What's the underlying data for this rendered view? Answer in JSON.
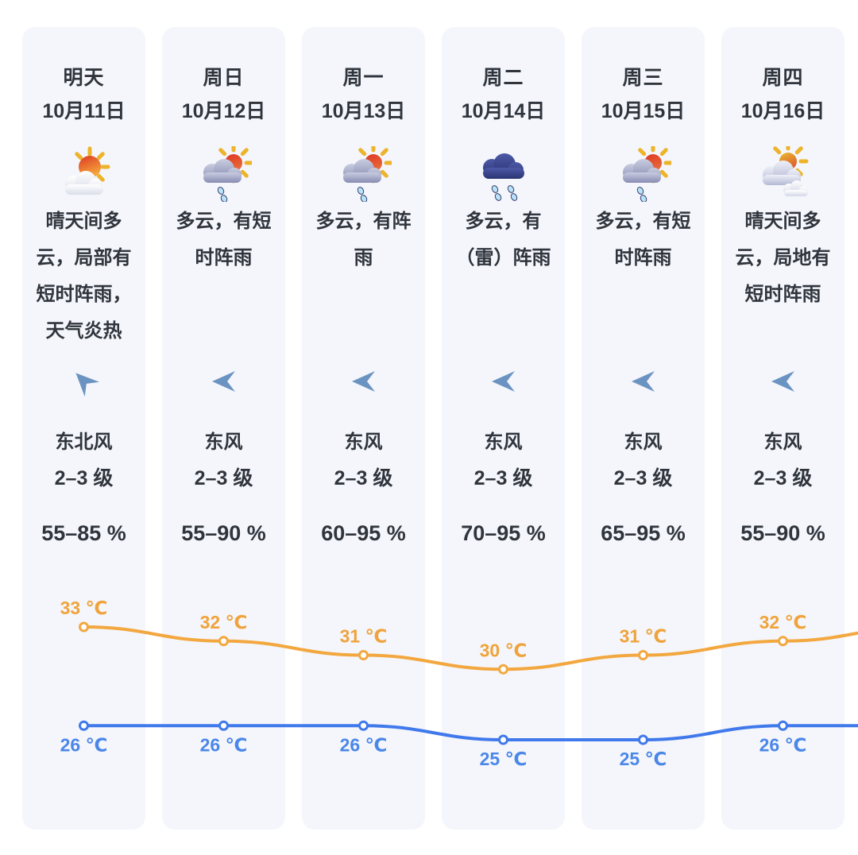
{
  "page": {
    "background": "#ffffff",
    "card_background": "#f4f6fb",
    "text_color": "#30353d"
  },
  "days": [
    {
      "label": "明天",
      "date": "10月11日",
      "icon": "sun-behind-cloud",
      "description": "晴天间多云，局部有短时阵雨，天气炎热",
      "wind_direction": "东北风",
      "wind_scale": "2–3 级",
      "wind_arrow_rotation": 45,
      "humidity": "55–85 %",
      "high_c": 33,
      "low_c": 26
    },
    {
      "label": "周日",
      "date": "10月12日",
      "icon": "cloud-sun-rain",
      "description": "多云，有短时阵雨",
      "wind_direction": "东风",
      "wind_scale": "2–3 级",
      "wind_arrow_rotation": 0,
      "humidity": "55–90 %",
      "high_c": 32,
      "low_c": 26
    },
    {
      "label": "周一",
      "date": "10月13日",
      "icon": "cloud-sun-rain",
      "description": "多云，有阵雨",
      "wind_direction": "东风",
      "wind_scale": "2–3 级",
      "wind_arrow_rotation": 0,
      "humidity": "60–95 %",
      "high_c": 31,
      "low_c": 26
    },
    {
      "label": "周二",
      "date": "10月14日",
      "icon": "rain-cloud",
      "description": "多云，有（雷）阵雨",
      "wind_direction": "东风",
      "wind_scale": "2–3 级",
      "wind_arrow_rotation": 0,
      "humidity": "70–95 %",
      "high_c": 30,
      "low_c": 25
    },
    {
      "label": "周三",
      "date": "10月15日",
      "icon": "cloud-sun-rain",
      "description": "多云，有短时阵雨",
      "wind_direction": "东风",
      "wind_scale": "2–3 级",
      "wind_arrow_rotation": 0,
      "humidity": "65–95 %",
      "high_c": 31,
      "low_c": 25
    },
    {
      "label": "周四",
      "date": "10月16日",
      "icon": "sun-two-clouds",
      "description": "晴天间多云，局地有短时阵雨",
      "wind_direction": "东风",
      "wind_scale": "2–3 级",
      "wind_arrow_rotation": 0,
      "humidity": "55–90 %",
      "high_c": 32,
      "low_c": 26
    }
  ],
  "chart_data": {
    "type": "line",
    "categories": [
      "明天 10月11日",
      "周日 10月12日",
      "周一 10月13日",
      "周二 10月14日",
      "周三 10月15日",
      "周四 10月16日"
    ],
    "series": [
      {
        "name": "最高气温",
        "values": [
          33,
          32,
          31,
          30,
          31,
          32
        ],
        "color": "#F3A73F",
        "label_color": "#F0A33C"
      },
      {
        "name": "最低气温",
        "values": [
          26,
          26,
          26,
          25,
          25,
          26
        ],
        "color": "#4079EC",
        "label_color": "#4B87E8"
      }
    ],
    "unit": "℃",
    "label_format": "{v} ℃",
    "continuation_right": {
      "high": 33,
      "low": 26
    },
    "legend": "none",
    "grid": "off"
  },
  "icons": {
    "arrow_color": "#6b93c2"
  }
}
